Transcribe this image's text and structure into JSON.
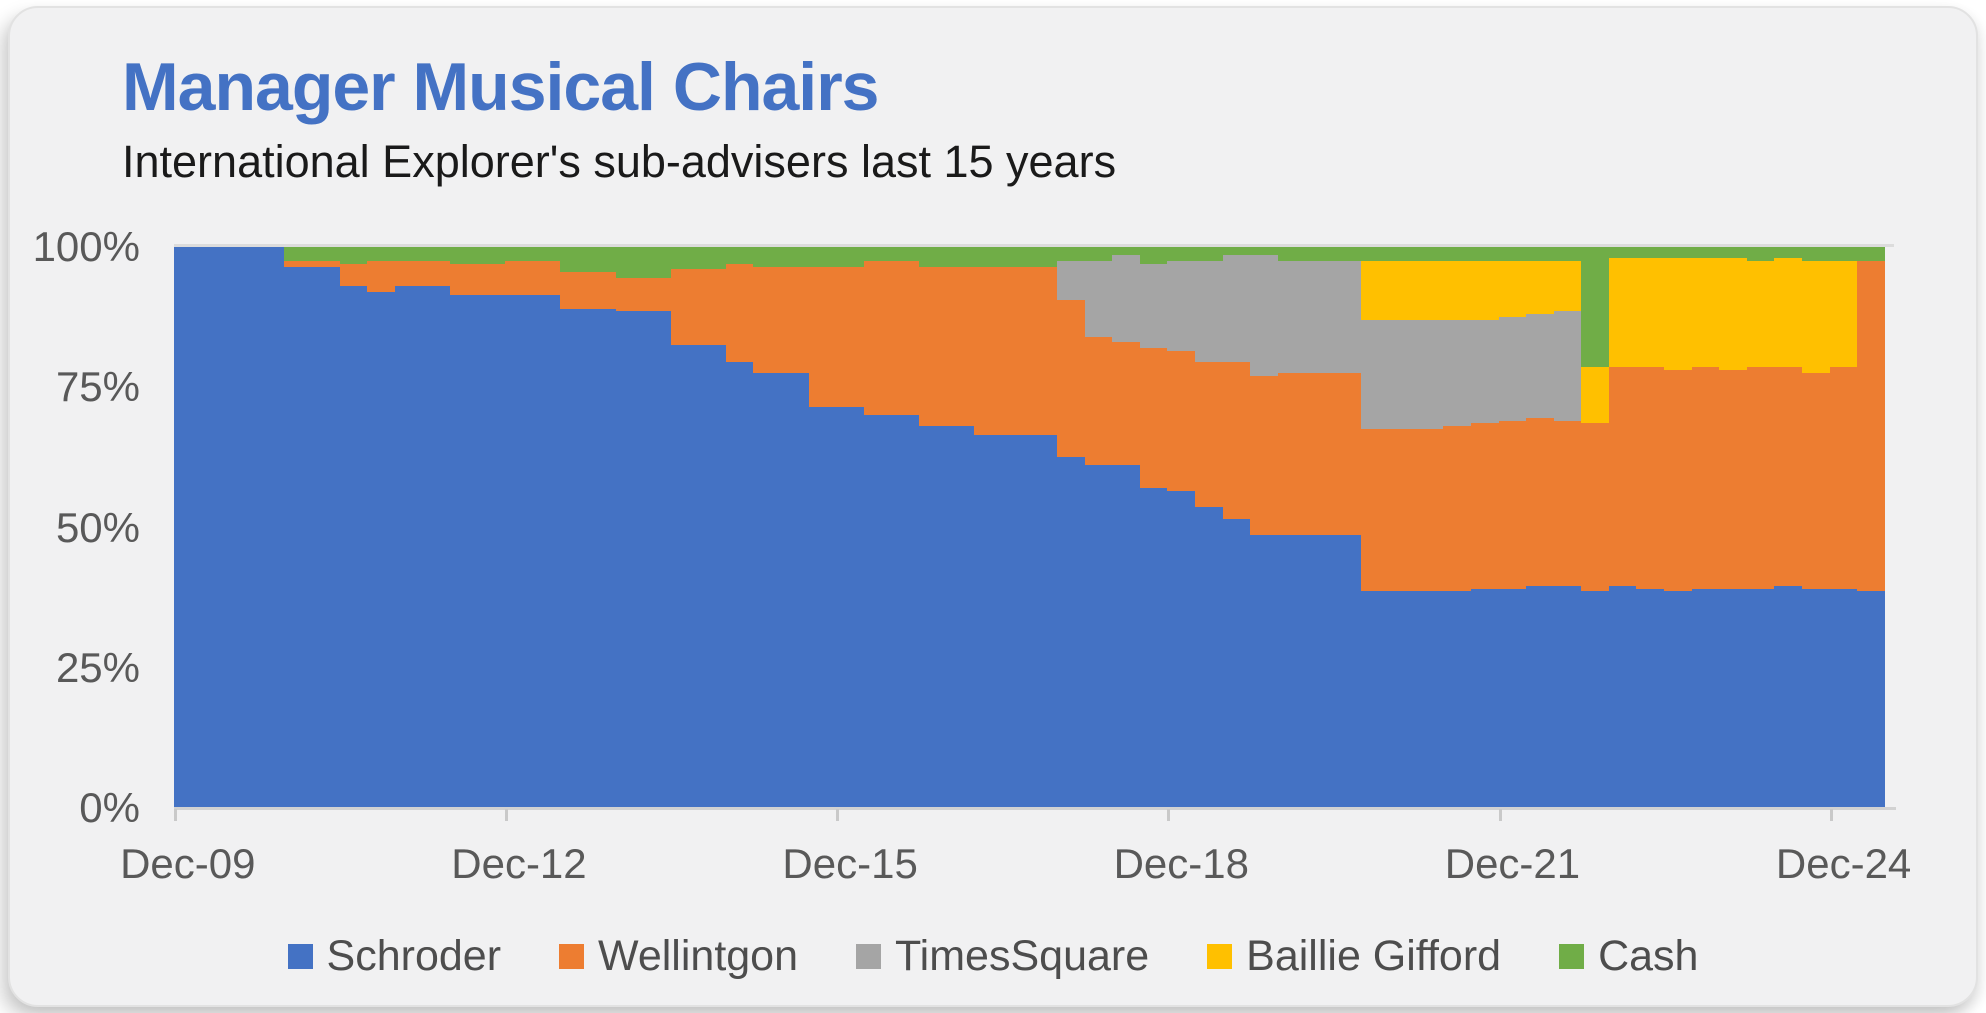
{
  "title": {
    "text": "Manager Musical Chairs",
    "color": "#4472C4"
  },
  "subtitle": "International Explorer's sub-advisers last 15 years",
  "chart_data": {
    "type": "bar",
    "variant": "stacked-column-100pct",
    "title": "Manager Musical Chairs",
    "subtitle": "International Explorer's sub-advisers last 15 years",
    "xlabel": "",
    "ylabel": "",
    "ylim": [
      0,
      100
    ],
    "grid": false,
    "legend_position": "bottom",
    "y_ticks": [
      "100%",
      "75%",
      "50%",
      "25%",
      "0%"
    ],
    "x_tick_labels": [
      "Dec-09",
      "Dec-12",
      "Dec-15",
      "Dec-18",
      "Dec-21",
      "Dec-24"
    ],
    "x_tick_indices": [
      0,
      12,
      24,
      36,
      48,
      60
    ],
    "categories": [
      "Dec-09",
      "Mar-10",
      "Jun-10",
      "Sep-10",
      "Dec-10",
      "Mar-11",
      "Jun-11",
      "Sep-11",
      "Dec-11",
      "Mar-12",
      "Jun-12",
      "Sep-12",
      "Dec-12",
      "Mar-13",
      "Jun-13",
      "Sep-13",
      "Dec-13",
      "Mar-14",
      "Jun-14",
      "Sep-14",
      "Dec-14",
      "Mar-15",
      "Jun-15",
      "Sep-15",
      "Dec-15",
      "Mar-16",
      "Jun-16",
      "Sep-16",
      "Dec-16",
      "Mar-17",
      "Jun-17",
      "Sep-17",
      "Dec-17",
      "Mar-18",
      "Jun-18",
      "Sep-18",
      "Dec-18",
      "Mar-19",
      "Jun-19",
      "Sep-19",
      "Dec-19",
      "Mar-20",
      "Jun-20",
      "Sep-20",
      "Dec-20",
      "Mar-21",
      "Jun-21",
      "Sep-21",
      "Dec-21",
      "Mar-22",
      "Jun-22",
      "Sep-22",
      "Dec-22",
      "Mar-23",
      "Jun-23",
      "Sep-23",
      "Dec-23",
      "Mar-24",
      "Jun-24",
      "Sep-24",
      "Dec-24",
      "Mar-25"
    ],
    "series": [
      {
        "name": "Schroder",
        "color": "#4472C4",
        "values": [
          100,
          100,
          100,
          100,
          96.5,
          96.5,
          93,
          92,
          93,
          93,
          91.5,
          91.5,
          91.5,
          91.5,
          89,
          89,
          88.5,
          88.5,
          82.5,
          82.5,
          79.5,
          77.5,
          77.5,
          71.5,
          71.5,
          70,
          70,
          68,
          68,
          66.5,
          66.5,
          66.5,
          62.5,
          61,
          61,
          57,
          56.5,
          53.5,
          51.5,
          48.5,
          48.5,
          48.5,
          48.5,
          38.5,
          38.5,
          38.5,
          38.5,
          39,
          39,
          39.5,
          39.5,
          38.5,
          39.5,
          39,
          38.5,
          39,
          39,
          39,
          39.5,
          39,
          39,
          38.5
        ]
      },
      {
        "name": "Wellintgon",
        "color": "#ED7D31",
        "values": [
          0,
          0,
          0,
          0,
          1,
          1,
          4,
          5.5,
          4.5,
          4.5,
          5.5,
          5.5,
          6,
          6,
          6.5,
          6.5,
          6,
          6,
          13.5,
          13.5,
          17.5,
          19,
          19,
          25,
          25,
          27.5,
          27.5,
          28.5,
          28.5,
          30,
          30,
          30,
          28,
          23,
          22,
          25,
          25,
          26,
          28,
          28.5,
          29,
          29,
          29,
          29,
          29,
          29,
          29.5,
          29.5,
          30,
          30,
          29.5,
          30,
          39,
          39.5,
          39.5,
          39.5,
          39,
          39.5,
          39,
          38.5,
          39.5,
          59
        ]
      },
      {
        "name": "TimesSquare",
        "color": "#A5A5A5",
        "values": [
          0,
          0,
          0,
          0,
          0,
          0,
          0,
          0,
          0,
          0,
          0,
          0,
          0,
          0,
          0,
          0,
          0,
          0,
          0,
          0,
          0,
          0,
          0,
          0,
          0,
          0,
          0,
          0,
          0,
          0,
          0,
          0,
          7,
          13.5,
          15.5,
          15,
          16,
          18,
          19,
          21.5,
          20,
          20,
          20,
          19.5,
          19.5,
          19.5,
          19,
          18.5,
          18.5,
          18.5,
          19.5,
          0,
          0,
          0,
          0,
          0,
          0,
          0,
          0,
          0,
          0,
          0
        ]
      },
      {
        "name": "Baillie Gifford",
        "color": "#FFC000",
        "values": [
          0,
          0,
          0,
          0,
          0,
          0,
          0,
          0,
          0,
          0,
          0,
          0,
          0,
          0,
          0,
          0,
          0,
          0,
          0,
          0,
          0,
          0,
          0,
          0,
          0,
          0,
          0,
          0,
          0,
          0,
          0,
          0,
          0,
          0,
          0,
          0,
          0,
          0,
          0,
          0,
          0,
          0,
          0,
          10.5,
          10.5,
          10.5,
          10.5,
          10.5,
          10,
          9.5,
          9,
          10,
          19.5,
          19.5,
          20,
          19.5,
          20,
          19,
          19.5,
          20,
          19,
          0
        ]
      },
      {
        "name": "Cash",
        "color": "#70AD47",
        "values": [
          0,
          0,
          0,
          0,
          2.5,
          2.5,
          3,
          2.5,
          2.5,
          2.5,
          3,
          3,
          2.5,
          2.5,
          4.5,
          4.5,
          5.5,
          5.5,
          4,
          4,
          3,
          3.5,
          3.5,
          3.5,
          3.5,
          2.5,
          2.5,
          3.5,
          3.5,
          3.5,
          3.5,
          3.5,
          2.5,
          2.5,
          1.5,
          3,
          2.5,
          2.5,
          1.5,
          1.5,
          2.5,
          2.5,
          2.5,
          2.5,
          2.5,
          2.5,
          2.5,
          2.5,
          2.5,
          2.5,
          2.5,
          21.5,
          2,
          2,
          2,
          2,
          2,
          2.5,
          2,
          2.5,
          2.5,
          2.5
        ]
      }
    ]
  }
}
